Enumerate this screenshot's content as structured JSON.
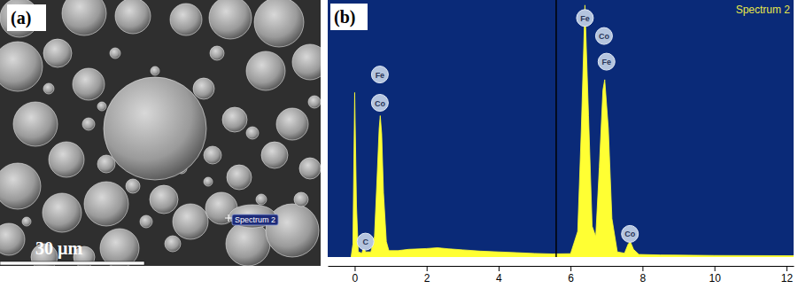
{
  "image_panel": {
    "panel_label": "(a)",
    "scale_bar": "30 µm",
    "marker_label": "Spectrum 2"
  },
  "chart_data": {
    "type": "area",
    "panel_label": "(b)",
    "title": "Spectrum 2",
    "color": "#ffff33",
    "x": [
      -0.1,
      -0.05,
      0,
      0.05,
      0.1,
      0.2,
      0.25,
      0.3,
      0.45,
      0.55,
      0.62,
      0.68,
      0.71,
      0.75,
      0.8,
      0.88,
      0.95,
      1.2,
      1.5,
      2.0,
      2.3,
      2.6,
      3.0,
      3.5,
      4.0,
      4.5,
      5.0,
      5.5,
      6.0,
      6.2,
      6.3,
      6.4,
      6.5,
      6.6,
      6.7,
      6.8,
      6.9,
      6.95,
      7.05,
      7.15,
      7.3,
      7.5,
      7.6,
      7.66,
      7.75,
      7.9,
      8.5,
      10.0,
      12.2
    ],
    "values": [
      0,
      5,
      64,
      20,
      2,
      1.5,
      4,
      2,
      2,
      8,
      30,
      50,
      55,
      48,
      25,
      6,
      2.5,
      2.5,
      3,
      3.3,
      3.6,
      3.2,
      2.8,
      2.3,
      2,
      1.7,
      1.4,
      1.2,
      1.3,
      10,
      50,
      98,
      55,
      12,
      8,
      35,
      65,
      69,
      50,
      15,
      2,
      1.5,
      5,
      6,
      3,
      1,
      0.8,
      0.6,
      0.5
    ],
    "xlim": [
      -0.75,
      12.2
    ],
    "ylim": [
      0,
      100
    ],
    "xticks": [
      0,
      2,
      4,
      6,
      8,
      10,
      12
    ],
    "tick_labels": "x",
    "vline": 5.6,
    "annotations": [
      {
        "x": 0.3,
        "y": 6,
        "label": "C"
      },
      {
        "x": 0.7,
        "y": 71,
        "label": "Fe"
      },
      {
        "x": 0.7,
        "y": 60,
        "label": "Co"
      },
      {
        "x": 6.4,
        "y": 93,
        "label": "Fe"
      },
      {
        "x": 6.93,
        "y": 86,
        "label": "Co"
      },
      {
        "x": 7.0,
        "y": 76,
        "label": "Fe"
      },
      {
        "x": 7.65,
        "y": 9,
        "label": "Co"
      }
    ]
  }
}
